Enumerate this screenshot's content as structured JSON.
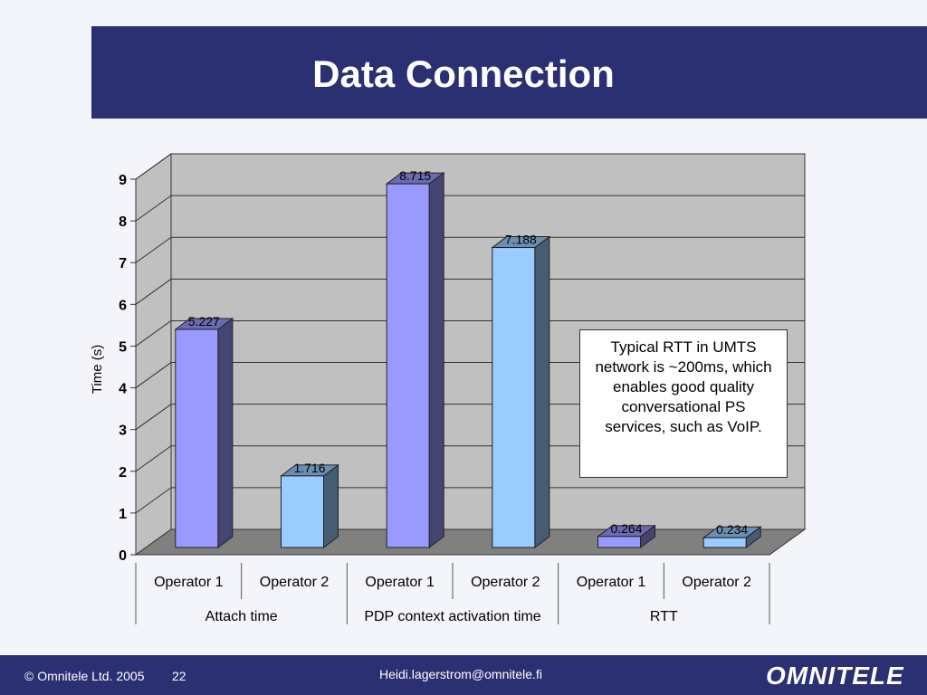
{
  "slide": {
    "title": "Data Connection",
    "note": "Typical RTT in UMTS network is ~200ms, which enables good quality conversational PS services, such as VoIP.",
    "footer": {
      "copyright": "© Omnitele Ltd. 2005",
      "page": "22",
      "email": "Heidi.lagerstrom@omnitele.fi",
      "logo": "OMNITELE"
    }
  },
  "colors": {
    "title_bar": "#2b3073",
    "operator1": "#9999ff",
    "operator2": "#99ccff",
    "wall": "#c0c0c0",
    "floor": "#808080"
  },
  "chart_data": {
    "type": "bar",
    "ylabel": "Time (s)",
    "ylim": [
      0,
      9
    ],
    "yticks": [
      0,
      1,
      2,
      3,
      4,
      5,
      6,
      7,
      8,
      9
    ],
    "groups": [
      "Attach time",
      "PDP context activation time",
      "RTT"
    ],
    "categories": [
      "Operator 1",
      "Operator 2",
      "Operator 1",
      "Operator 2",
      "Operator 1",
      "Operator 2"
    ],
    "values": [
      5.227,
      1.716,
      8.715,
      7.188,
      0.264,
      0.234
    ],
    "data_labels": [
      "5.227",
      "1.716",
      "8.715",
      "7.188",
      "0.264",
      "0.234"
    ],
    "grid": true,
    "legend": "none"
  }
}
